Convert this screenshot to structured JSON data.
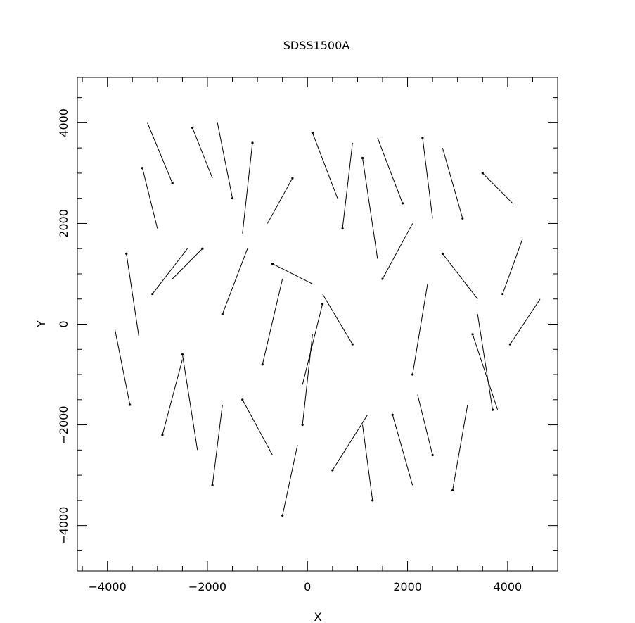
{
  "chart_data": {
    "type": "scatter",
    "title": "SDSS1500A",
    "xlabel": "X",
    "ylabel": "Y",
    "xlim": [
      -4600,
      5000
    ],
    "ylim": [
      -4900,
      4900
    ],
    "xticks": [
      -4000,
      -2000,
      0,
      2000,
      4000
    ],
    "yticks": [
      -4000,
      -2000,
      0,
      2000,
      4000
    ],
    "xtick_labels": [
      "−4000",
      "−2000",
      "0",
      "2000",
      "4000"
    ],
    "ytick_labels": [
      "−4000",
      "−2000",
      "0",
      "2000",
      "4000"
    ],
    "grid": false,
    "legend": "none",
    "point_color": "#000000",
    "vector_color": "#000000",
    "vectors": [
      {
        "x": -3620,
        "y": 1400,
        "dx": 250,
        "dy": -1650
      },
      {
        "x": -3550,
        "y": -1600,
        "dx": -300,
        "dy": 1500
      },
      {
        "x": -3300,
        "y": 3100,
        "dx": 300,
        "dy": -1200
      },
      {
        "x": -3100,
        "y": 600,
        "dx": 700,
        "dy": 900
      },
      {
        "x": -2900,
        "y": -2200,
        "dx": 400,
        "dy": 1500
      },
      {
        "x": -2700,
        "y": 2800,
        "dx": -500,
        "dy": 1200
      },
      {
        "x": -2500,
        "y": -600,
        "dx": 300,
        "dy": -1900
      },
      {
        "x": -2300,
        "y": 3900,
        "dx": 400,
        "dy": -1000
      },
      {
        "x": -2100,
        "y": 1500,
        "dx": -600,
        "dy": -600
      },
      {
        "x": -1900,
        "y": -3200,
        "dx": 200,
        "dy": 1600
      },
      {
        "x": -1700,
        "y": 200,
        "dx": 500,
        "dy": 1300
      },
      {
        "x": -1500,
        "y": 2500,
        "dx": -300,
        "dy": 1500
      },
      {
        "x": -1300,
        "y": -1500,
        "dx": 600,
        "dy": -1100
      },
      {
        "x": -1100,
        "y": 3600,
        "dx": -200,
        "dy": -1800
      },
      {
        "x": -900,
        "y": -800,
        "dx": 400,
        "dy": 1700
      },
      {
        "x": -700,
        "y": 1200,
        "dx": 800,
        "dy": -400
      },
      {
        "x": -500,
        "y": -3800,
        "dx": 300,
        "dy": 1400
      },
      {
        "x": -300,
        "y": 2900,
        "dx": -500,
        "dy": -900
      },
      {
        "x": -100,
        "y": -2000,
        "dx": 200,
        "dy": 1800
      },
      {
        "x": 100,
        "y": 3800,
        "dx": 500,
        "dy": -1300
      },
      {
        "x": 300,
        "y": 400,
        "dx": -400,
        "dy": -1600
      },
      {
        "x": 500,
        "y": -2900,
        "dx": 700,
        "dy": 1100
      },
      {
        "x": 700,
        "y": 1900,
        "dx": 200,
        "dy": 1700
      },
      {
        "x": 900,
        "y": -400,
        "dx": -600,
        "dy": 1000
      },
      {
        "x": 1100,
        "y": 3300,
        "dx": 300,
        "dy": -2000
      },
      {
        "x": 1300,
        "y": -3500,
        "dx": -200,
        "dy": 1500
      },
      {
        "x": 1500,
        "y": 900,
        "dx": 600,
        "dy": 1100
      },
      {
        "x": 1700,
        "y": -1800,
        "dx": 400,
        "dy": -1400
      },
      {
        "x": 1900,
        "y": 2400,
        "dx": -500,
        "dy": 1300
      },
      {
        "x": 2100,
        "y": -1000,
        "dx": 300,
        "dy": 1800
      },
      {
        "x": 2300,
        "y": 3700,
        "dx": 200,
        "dy": -1600
      },
      {
        "x": 2500,
        "y": -2600,
        "dx": -300,
        "dy": 1200
      },
      {
        "x": 2700,
        "y": 1400,
        "dx": 700,
        "dy": -900
      },
      {
        "x": 2900,
        "y": -3300,
        "dx": 300,
        "dy": 1700
      },
      {
        "x": 3100,
        "y": 2100,
        "dx": -400,
        "dy": 1400
      },
      {
        "x": 3300,
        "y": -200,
        "dx": 500,
        "dy": -1500
      },
      {
        "x": 3500,
        "y": 3000,
        "dx": 600,
        "dy": -600
      },
      {
        "x": 3700,
        "y": -1700,
        "dx": -300,
        "dy": 1900
      },
      {
        "x": 3900,
        "y": 600,
        "dx": 400,
        "dy": 1100
      },
      {
        "x": 4050,
        "y": -400,
        "dx": 600,
        "dy": 900
      }
    ]
  }
}
